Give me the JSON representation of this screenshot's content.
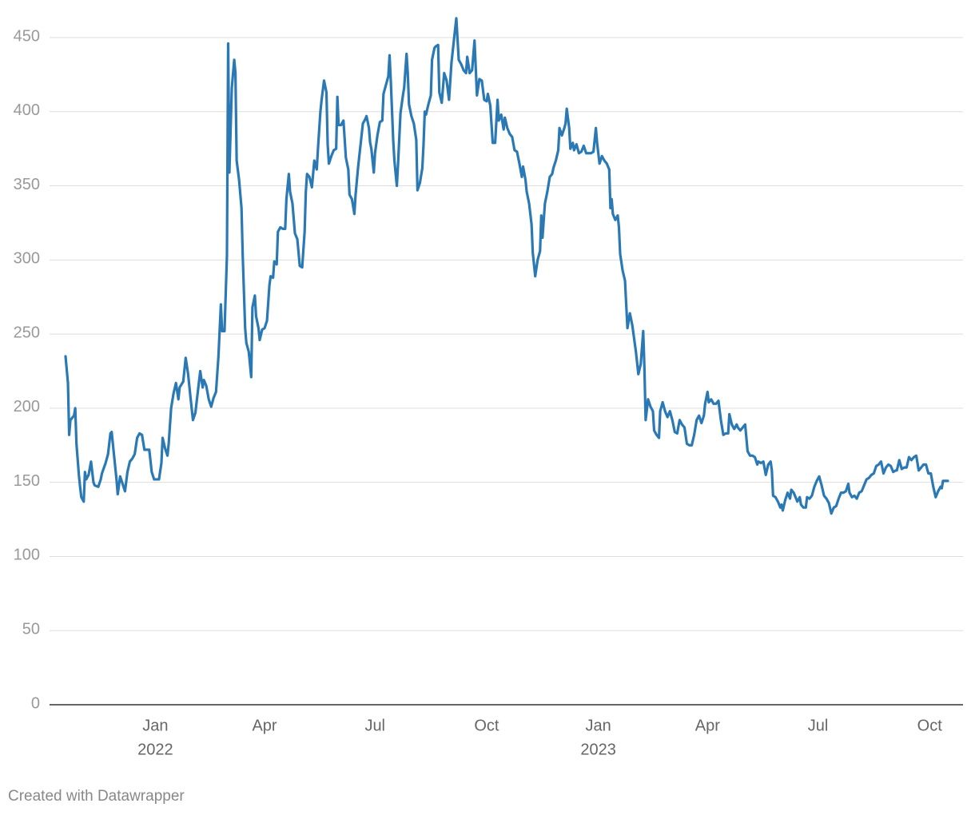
{
  "chart_data": {
    "type": "line",
    "color": "#2a79b5",
    "footer": "Created with Datawrapper",
    "ylim": [
      0,
      450
    ],
    "yticks": [
      0,
      50,
      100,
      150,
      200,
      250,
      300,
      350,
      400,
      450
    ],
    "grid": true,
    "xlim": [
      "2021-10-19",
      "2023-10-16"
    ],
    "xticks": [
      {
        "value": "2022-01-01",
        "label": "Jan",
        "year": "2022"
      },
      {
        "value": "2022-04-01",
        "label": "Apr"
      },
      {
        "value": "2022-07-01",
        "label": "Jul"
      },
      {
        "value": "2022-10-01",
        "label": "Oct"
      },
      {
        "value": "2023-01-01",
        "label": "Jan",
        "year": "2023"
      },
      {
        "value": "2023-04-01",
        "label": "Apr"
      },
      {
        "value": "2023-07-01",
        "label": "Jul"
      },
      {
        "value": "2023-10-01",
        "label": "Oct"
      }
    ],
    "x": [
      "2021-10-19",
      "2021-10-21",
      "2021-10-22",
      "2021-10-23",
      "2021-10-26",
      "2021-10-27",
      "2021-10-28",
      "2021-10-30",
      "2021-10-31",
      "2021-11-01",
      "2021-11-03",
      "2021-11-04",
      "2021-11-05",
      "2021-11-07",
      "2021-11-09",
      "2021-11-11",
      "2021-11-12",
      "2021-11-15",
      "2021-11-17",
      "2021-11-18",
      "2021-11-21",
      "2021-11-23",
      "2021-11-25",
      "2021-11-26",
      "2021-11-28",
      "2021-11-30",
      "2021-12-01",
      "2021-12-03",
      "2021-12-05",
      "2021-12-07",
      "2021-12-09",
      "2021-12-11",
      "2021-12-13",
      "2021-12-15",
      "2021-12-17",
      "2021-12-19",
      "2021-12-21",
      "2021-12-23",
      "2021-12-26",
      "2021-12-27",
      "2021-12-29",
      "2021-12-31",
      "2022-01-02",
      "2022-01-04",
      "2022-01-06",
      "2022-01-07",
      "2022-01-09",
      "2022-01-11",
      "2022-01-12",
      "2022-01-14",
      "2022-01-16",
      "2022-01-18",
      "2022-01-20",
      "2022-01-21",
      "2022-01-24",
      "2022-01-26",
      "2022-01-28",
      "2022-01-30",
      "2022-02-01",
      "2022-02-03",
      "2022-02-05",
      "2022-02-07",
      "2022-02-09",
      "2022-02-10",
      "2022-02-12",
      "2022-02-14",
      "2022-02-16",
      "2022-02-18",
      "2022-02-20",
      "2022-02-22",
      "2022-02-24",
      "2022-02-25",
      "2022-02-27",
      "2022-03-01",
      "2022-03-02",
      "2022-03-03",
      "2022-03-05",
      "2022-03-07",
      "2022-03-08",
      "2022-03-09",
      "2022-03-11",
      "2022-03-13",
      "2022-03-14",
      "2022-03-16",
      "2022-03-17",
      "2022-03-19",
      "2022-03-21",
      "2022-03-22",
      "2022-03-24",
      "2022-03-25",
      "2022-03-27",
      "2022-03-28",
      "2022-03-30",
      "2022-04-01",
      "2022-04-03",
      "2022-04-05",
      "2022-04-06",
      "2022-04-08",
      "2022-04-09",
      "2022-04-11",
      "2022-04-12",
      "2022-04-14",
      "2022-04-16",
      "2022-04-18",
      "2022-04-19",
      "2022-04-21",
      "2022-04-22",
      "2022-04-24",
      "2022-04-26",
      "2022-04-28",
      "2022-04-30",
      "2022-05-02",
      "2022-05-04",
      "2022-05-05",
      "2022-05-06",
      "2022-05-08",
      "2022-05-10",
      "2022-05-12",
      "2022-05-14",
      "2022-05-15",
      "2022-05-17",
      "2022-05-18",
      "2022-05-20",
      "2022-05-22",
      "2022-05-23",
      "2022-05-24",
      "2022-05-26",
      "2022-05-28",
      "2022-05-30",
      "2022-05-31",
      "2022-06-01",
      "2022-06-03",
      "2022-06-05",
      "2022-06-07",
      "2022-06-09",
      "2022-06-10",
      "2022-06-12",
      "2022-06-14",
      "2022-06-15",
      "2022-06-17",
      "2022-06-19",
      "2022-06-21",
      "2022-06-23",
      "2022-06-24",
      "2022-06-26",
      "2022-06-27",
      "2022-06-28",
      "2022-06-30",
      "2022-07-01",
      "2022-07-03",
      "2022-07-05",
      "2022-07-07",
      "2022-07-08",
      "2022-07-10",
      "2022-07-12",
      "2022-07-13",
      "2022-07-14",
      "2022-07-16",
      "2022-07-17",
      "2022-07-19",
      "2022-07-20",
      "2022-07-22",
      "2022-07-24",
      "2022-07-25",
      "2022-07-27",
      "2022-07-28",
      "2022-07-29",
      "2022-07-31",
      "2022-08-02",
      "2022-08-04",
      "2022-08-05",
      "2022-08-07",
      "2022-08-09",
      "2022-08-10",
      "2022-08-11",
      "2022-08-12",
      "2022-08-14",
      "2022-08-16",
      "2022-08-17",
      "2022-08-19",
      "2022-08-20",
      "2022-08-22",
      "2022-08-23",
      "2022-08-25",
      "2022-08-27",
      "2022-08-29",
      "2022-08-31",
      "2022-09-02",
      "2022-09-04",
      "2022-09-06",
      "2022-09-08",
      "2022-09-10",
      "2022-09-12",
      "2022-09-14",
      "2022-09-15",
      "2022-09-17",
      "2022-09-19",
      "2022-09-21",
      "2022-09-23",
      "2022-09-25",
      "2022-09-27",
      "2022-09-29",
      "2022-10-01",
      "2022-10-02",
      "2022-10-04",
      "2022-10-06",
      "2022-10-08",
      "2022-10-10",
      "2022-10-11",
      "2022-10-13",
      "2022-10-15",
      "2022-10-16",
      "2022-10-18",
      "2022-10-20",
      "2022-10-22",
      "2022-10-24",
      "2022-10-26",
      "2022-10-28",
      "2022-10-30",
      "2022-10-31",
      "2022-11-02",
      "2022-11-03",
      "2022-11-05",
      "2022-11-07",
      "2022-11-08",
      "2022-11-10",
      "2022-11-12",
      "2022-11-14",
      "2022-11-15",
      "2022-11-16",
      "2022-11-18",
      "2022-11-20",
      "2022-11-22",
      "2022-11-24",
      "2022-11-25",
      "2022-11-27",
      "2022-11-29",
      "2022-11-30",
      "2022-12-02",
      "2022-12-04",
      "2022-12-05",
      "2022-12-06",
      "2022-12-08",
      "2022-12-09",
      "2022-12-11",
      "2022-12-12",
      "2022-12-14",
      "2022-12-16",
      "2022-12-18",
      "2022-12-20",
      "2022-12-22",
      "2022-12-24",
      "2022-12-26",
      "2022-12-28",
      "2022-12-30",
      "2022-12-31",
      "2023-01-02",
      "2023-01-04",
      "2023-01-06",
      "2023-01-08",
      "2023-01-10",
      "2023-01-11",
      "2023-01-12",
      "2023-01-13",
      "2023-01-15",
      "2023-01-17",
      "2023-01-18",
      "2023-01-19",
      "2023-01-21",
      "2023-01-23",
      "2023-01-25",
      "2023-01-27",
      "2023-01-29",
      "2023-01-31",
      "2023-02-01",
      "2023-02-03",
      "2023-02-05",
      "2023-02-07",
      "2023-02-08",
      "2023-02-09",
      "2023-02-11",
      "2023-02-13",
      "2023-02-15",
      "2023-02-16",
      "2023-02-18",
      "2023-02-20",
      "2023-02-21",
      "2023-02-23",
      "2023-02-25",
      "2023-02-27",
      "2023-03-01",
      "2023-03-03",
      "2023-03-05",
      "2023-03-07",
      "2023-03-09",
      "2023-03-11",
      "2023-03-13",
      "2023-03-15",
      "2023-03-17",
      "2023-03-19",
      "2023-03-21",
      "2023-03-23",
      "2023-03-25",
      "2023-03-27",
      "2023-03-29",
      "2023-03-30",
      "2023-04-01",
      "2023-04-02",
      "2023-04-04",
      "2023-04-06",
      "2023-04-08",
      "2023-04-10",
      "2023-04-12",
      "2023-04-14",
      "2023-04-16",
      "2023-04-18",
      "2023-04-19",
      "2023-04-21",
      "2023-04-23",
      "2023-04-25",
      "2023-04-26",
      "2023-04-28",
      "2023-04-30",
      "2023-05-02",
      "2023-05-04",
      "2023-05-06",
      "2023-05-08",
      "2023-05-10",
      "2023-05-12",
      "2023-05-13",
      "2023-05-15",
      "2023-05-17",
      "2023-05-19",
      "2023-05-21",
      "2023-05-23",
      "2023-05-24",
      "2023-05-25",
      "2023-05-27",
      "2023-05-29",
      "2023-05-31",
      "2023-06-01",
      "2023-06-02",
      "2023-06-04",
      "2023-06-06",
      "2023-06-08",
      "2023-06-09",
      "2023-06-11",
      "2023-06-13",
      "2023-06-14",
      "2023-06-16",
      "2023-06-17",
      "2023-06-19",
      "2023-06-21",
      "2023-06-22",
      "2023-06-24",
      "2023-06-26",
      "2023-06-28",
      "2023-06-30",
      "2023-07-02",
      "2023-07-04",
      "2023-07-06",
      "2023-07-08",
      "2023-07-10",
      "2023-07-12",
      "2023-07-14",
      "2023-07-16",
      "2023-07-18",
      "2023-07-20",
      "2023-07-22",
      "2023-07-24",
      "2023-07-26",
      "2023-07-27",
      "2023-07-29",
      "2023-07-31",
      "2023-08-02",
      "2023-08-04",
      "2023-08-06",
      "2023-08-08",
      "2023-08-10",
      "2023-08-12",
      "2023-08-14",
      "2023-08-16",
      "2023-08-18",
      "2023-08-20",
      "2023-08-22",
      "2023-08-24",
      "2023-08-26",
      "2023-08-28",
      "2023-08-30",
      "2023-09-01",
      "2023-09-03",
      "2023-09-04",
      "2023-09-06",
      "2023-09-08",
      "2023-09-10",
      "2023-09-12",
      "2023-09-14",
      "2023-09-16",
      "2023-09-18",
      "2023-09-20",
      "2023-09-22",
      "2023-09-24",
      "2023-09-26",
      "2023-09-28",
      "2023-09-30",
      "2023-10-02",
      "2023-10-04",
      "2023-10-06",
      "2023-10-08",
      "2023-10-10",
      "2023-10-11",
      "2023-10-12",
      "2023-10-14",
      "2023-10-16"
    ],
    "values": [
      235,
      217,
      182,
      192,
      195,
      200,
      176,
      155,
      147,
      140,
      137,
      157,
      152,
      155,
      164,
      150,
      148,
      147,
      152,
      156,
      163,
      169,
      183,
      184,
      168,
      152,
      142,
      154,
      149,
      144,
      157,
      164,
      166,
      169,
      180,
      183,
      182,
      172,
      172,
      172,
      157,
      152,
      152,
      152,
      163,
      180,
      173,
      168,
      176,
      200,
      210,
      217,
      206,
      214,
      218,
      234,
      223,
      207,
      192,
      197,
      211,
      225,
      214,
      219,
      215,
      206,
      201,
      207,
      211,
      235,
      270,
      252,
      252,
      303,
      446,
      359,
      416,
      435,
      426,
      367,
      354,
      335,
      303,
      254,
      244,
      238,
      221,
      268,
      276,
      262,
      254,
      246,
      253,
      254,
      259,
      283,
      289,
      288,
      299,
      297,
      319,
      322,
      321,
      321,
      341,
      358,
      346,
      338,
      318,
      314,
      296,
      295,
      319,
      346,
      358,
      356,
      349,
      367,
      361,
      375,
      400,
      408,
      421,
      413,
      378,
      365,
      370,
      374,
      375,
      410,
      391,
      391,
      394,
      369,
      361,
      344,
      341,
      331,
      344,
      362,
      377,
      392,
      395,
      397,
      389,
      379,
      375,
      359,
      372,
      384,
      393,
      394,
      412,
      418,
      424,
      438,
      421,
      381,
      367,
      350,
      365,
      399,
      411,
      416,
      439,
      426,
      405,
      397,
      392,
      381,
      347,
      352,
      362,
      378,
      400,
      398,
      405,
      411,
      435,
      443,
      444,
      445,
      413,
      406,
      426,
      421,
      408,
      433,
      448,
      463,
      435,
      432,
      428,
      426,
      437,
      426,
      428,
      448,
      411,
      422,
      421,
      408,
      407,
      412,
      404,
      379,
      379,
      408,
      394,
      398,
      388,
      396,
      389,
      385,
      383,
      374,
      373,
      365,
      356,
      363,
      354,
      346,
      338,
      324,
      305,
      289,
      300,
      306,
      330,
      315,
      338,
      346,
      356,
      358,
      362,
      367,
      374,
      389,
      384,
      389,
      392,
      402,
      389,
      375,
      379,
      374,
      378,
      372,
      373,
      377,
      372,
      372,
      372,
      373,
      389,
      379,
      365,
      370,
      367,
      365,
      361,
      335,
      341,
      331,
      327,
      330,
      322,
      304,
      293,
      286,
      254,
      264,
      256,
      244,
      238,
      223,
      230,
      252,
      227,
      192,
      206,
      201,
      198,
      185,
      182,
      180,
      198,
      204,
      198,
      194,
      198,
      192,
      184,
      183,
      192,
      189,
      187,
      176,
      175,
      175,
      182,
      192,
      195,
      190,
      195,
      203,
      211,
      204,
      206,
      203,
      203,
      205,
      192,
      182,
      183,
      183,
      196,
      189,
      186,
      189,
      187,
      185,
      187,
      189,
      171,
      168,
      168,
      167,
      162,
      164,
      163,
      164,
      155,
      162,
      164,
      158,
      141,
      140,
      137,
      133,
      135,
      131,
      138,
      143,
      139,
      145,
      143,
      139,
      137,
      140,
      135,
      133,
      133,
      140,
      139,
      141,
      147,
      151,
      154,
      148,
      141,
      139,
      136,
      129,
      133,
      134,
      139,
      143,
      143,
      144,
      149,
      143,
      140,
      141,
      139,
      143,
      144,
      148,
      152,
      153,
      155,
      156,
      161,
      162,
      164,
      156,
      160,
      162,
      161,
      157,
      158,
      158,
      165,
      159,
      160,
      160,
      167,
      165,
      167,
      168,
      158,
      160,
      162,
      162,
      156,
      156,
      147,
      140,
      144,
      147,
      146,
      151,
      151,
      151
    ]
  }
}
